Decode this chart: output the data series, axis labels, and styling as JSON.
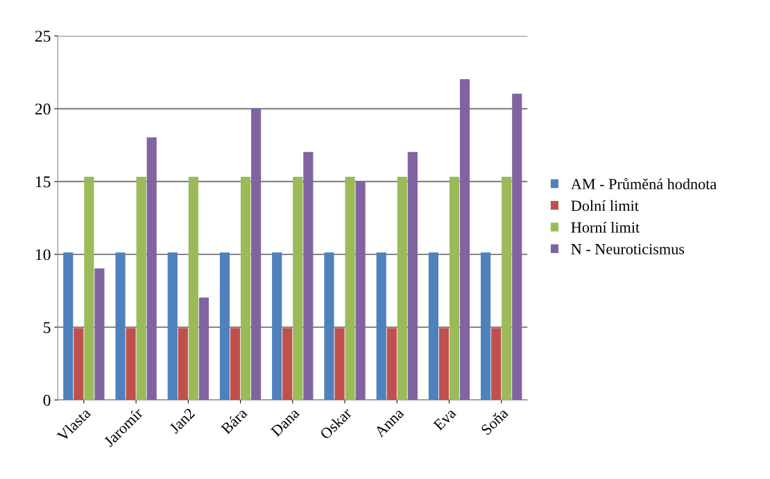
{
  "chart_data": {
    "type": "bar",
    "categories": [
      "Vlasta",
      "Jaromír",
      "Jan2",
      "Bára",
      "Dana",
      "Oskar",
      "Anna",
      "Eva",
      "Soňa"
    ],
    "series": [
      {
        "name": "AM - Průměná hodnota",
        "color": "#4f81bd",
        "values": [
          10.1,
          10.1,
          10.1,
          10.1,
          10.1,
          10.1,
          10.1,
          10.1,
          10.1
        ]
      },
      {
        "name": "Dolní limit",
        "color": "#c0504d",
        "values": [
          4.9,
          4.9,
          4.9,
          4.9,
          4.9,
          4.9,
          4.9,
          4.9,
          4.9
        ]
      },
      {
        "name": "Horní limit",
        "color": "#9bbb59",
        "values": [
          15.3,
          15.3,
          15.3,
          15.3,
          15.3,
          15.3,
          15.3,
          15.3,
          15.3
        ]
      },
      {
        "name": "N - Neuroticismus",
        "color": "#8064a2",
        "values": [
          9,
          18,
          7,
          20,
          17,
          15,
          17,
          22,
          21
        ]
      }
    ],
    "ylim": [
      0,
      25
    ],
    "yticks": [
      0,
      5,
      10,
      15,
      20,
      25
    ],
    "grid": "y",
    "legend": "right"
  }
}
